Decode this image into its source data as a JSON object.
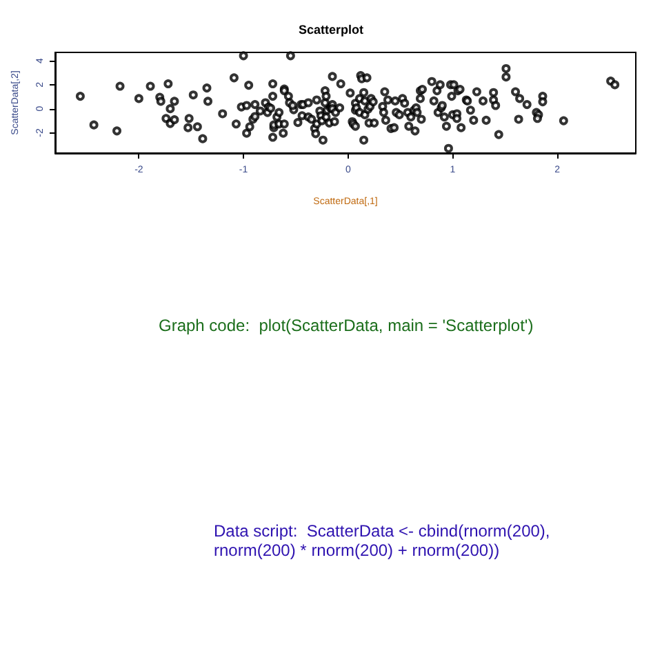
{
  "chart_data": {
    "type": "scatter",
    "title": "Scatterplot",
    "xlabel": "ScatterData[,1]",
    "ylabel": "ScatterData[,2]",
    "annotations": [
      "Graph code:  plot(ScatterData, main = 'Scatterplot')",
      "Data script:  ScatterData <- cbind(rnorm(200),rnorm(200) * rnorm(200) + rnorm(200))"
    ],
    "marker": "circle",
    "color": "#000000",
    "xlim": [
      -2.8,
      2.75
    ],
    "ylim": [
      -3.7,
      4.7
    ],
    "xticks": [
      -2,
      -1,
      0,
      1,
      2
    ],
    "yticks": [
      -2,
      0,
      2,
      4
    ],
    "x": [
      -2.56,
      -2.43,
      -2.21,
      -2.18,
      -2.0,
      -1.89,
      -1.8,
      -1.79,
      -1.72,
      -1.7,
      -1.74,
      -1.7,
      -1.66,
      -1.66,
      -1.53,
      -1.52,
      -1.48,
      -1.44,
      -1.39,
      -1.35,
      -1.34,
      -1.2,
      -1.09,
      -1.07,
      -1.02,
      -1.0,
      -0.95,
      -0.97,
      -0.94,
      -0.97,
      -0.91,
      -0.89,
      -0.89,
      -0.84,
      -0.79,
      -0.76,
      -0.77,
      -0.74,
      -0.72,
      -0.72,
      -0.72,
      -0.71,
      -0.71,
      -0.68,
      -0.66,
      -0.66,
      -0.62,
      -0.61,
      -0.61,
      -0.61,
      -0.57,
      -0.55,
      -0.56,
      -0.52,
      -0.53,
      -0.48,
      -0.45,
      -0.43,
      -0.44,
      -0.38,
      -0.38,
      -0.35,
      -0.32,
      -0.31,
      -0.3,
      -0.3,
      -0.27,
      -0.26,
      -0.25,
      -0.24,
      -0.22,
      -0.22,
      -0.21,
      -0.21,
      -0.2,
      -0.18,
      -0.17,
      -0.16,
      -0.15,
      -0.15,
      -0.15,
      -0.12,
      -0.13,
      -0.08,
      -0.07,
      0.02,
      0.04,
      0.05,
      0.07,
      0.07,
      0.07,
      0.08,
      0.11,
      0.11,
      0.12,
      0.13,
      0.15,
      0.15,
      0.16,
      0.16,
      0.18,
      0.19,
      0.2,
      0.21,
      0.22,
      0.24,
      0.25,
      0.33,
      0.34,
      0.35,
      0.36,
      0.38,
      0.41,
      0.44,
      0.45,
      0.46,
      0.49,
      0.52,
      0.54,
      0.57,
      0.58,
      0.6,
      0.63,
      0.64,
      0.65,
      0.66,
      0.69,
      0.69,
      0.71,
      0.7,
      0.8,
      0.82,
      0.85,
      0.86,
      0.88,
      0.89,
      0.9,
      0.92,
      0.94,
      0.96,
      0.98,
      0.99,
      1.0,
      1.01,
      1.04,
      1.05,
      1.07,
      1.04,
      1.08,
      1.13,
      1.14,
      1.17,
      1.2,
      1.23,
      1.29,
      1.32,
      1.39,
      1.39,
      1.41,
      1.44,
      1.51,
      1.51,
      1.6,
      1.64,
      1.63,
      1.71,
      1.8,
      1.82,
      1.81,
      1.86,
      1.86,
      2.06,
      2.51,
      2.55
    ],
    "values": [
      1.04,
      -1.35,
      -1.85,
      1.88,
      0.85,
      1.88,
      0.96,
      0.62,
      2.08,
      0,
      -0.81,
      -1.23,
      0.62,
      -0.92,
      -1.58,
      -0.81,
      1.15,
      -1.5,
      -2.5,
      1.73,
      0.62,
      -0.42,
      2.58,
      -1.27,
      0.15,
      4.42,
      1.96,
      -2.04,
      -1.5,
      0.27,
      -0.88,
      0.35,
      -0.65,
      -0.19,
      0.5,
      0.15,
      -0.31,
      0.04,
      2.08,
      1.04,
      -2.38,
      -1.58,
      -1.35,
      -0.69,
      -0.31,
      -1.27,
      -2.04,
      -1.27,
      1.65,
      1.5,
      1.04,
      4.42,
      0.5,
      -0.08,
      0.27,
      -1.15,
      0.35,
      0.35,
      -0.58,
      0.5,
      -0.69,
      -0.88,
      -1.65,
      -2.08,
      0.73,
      -1.27,
      -0.19,
      -0.58,
      -1.0,
      -2.62,
      1.5,
      0.5,
      1.04,
      -0.69,
      -0.12,
      -1.19,
      0.08,
      0.15,
      2.69,
      0.35,
      0,
      -0.31,
      -1.08,
      0.08,
      2.08,
      1.31,
      -1.08,
      -1.27,
      -1.46,
      0.46,
      -0.12,
      0.08,
      -0.31,
      0.85,
      2.77,
      2.5,
      1.35,
      -2.62,
      0.65,
      -0.5,
      2.58,
      -0.04,
      -1.19,
      0.19,
      0.85,
      0.58,
      -1.19,
      0.19,
      -0.31,
      1.42,
      -0.96,
      0.73,
      -1.65,
      -1.58,
      0.65,
      -0.31,
      -0.5,
      0.85,
      0.46,
      -0.31,
      -1.46,
      -0.69,
      -0.12,
      -1.85,
      0.08,
      -0.31,
      0.85,
      1.5,
      1.62,
      -0.88,
      2.27,
      0.65,
      1.5,
      -0.31,
      2.0,
      0.08,
      0.27,
      -0.69,
      -1.46,
      -3.31,
      2.0,
      1.04,
      -0.5,
      2.0,
      -0.42,
      1.5,
      1.62,
      -0.81,
      -1.58,
      0.73,
      0.65,
      -0.12,
      -0.96,
      1.42,
      0.65,
      -0.96,
      1.35,
      0.73,
      0.27,
      -2.15,
      3.35,
      2.65,
      1.42,
      0.85,
      -0.88,
      0.35,
      -0.31,
      -0.5,
      -0.81,
      1.04,
      0.58,
      -1.0,
      2.31,
      2.0
    ]
  }
}
